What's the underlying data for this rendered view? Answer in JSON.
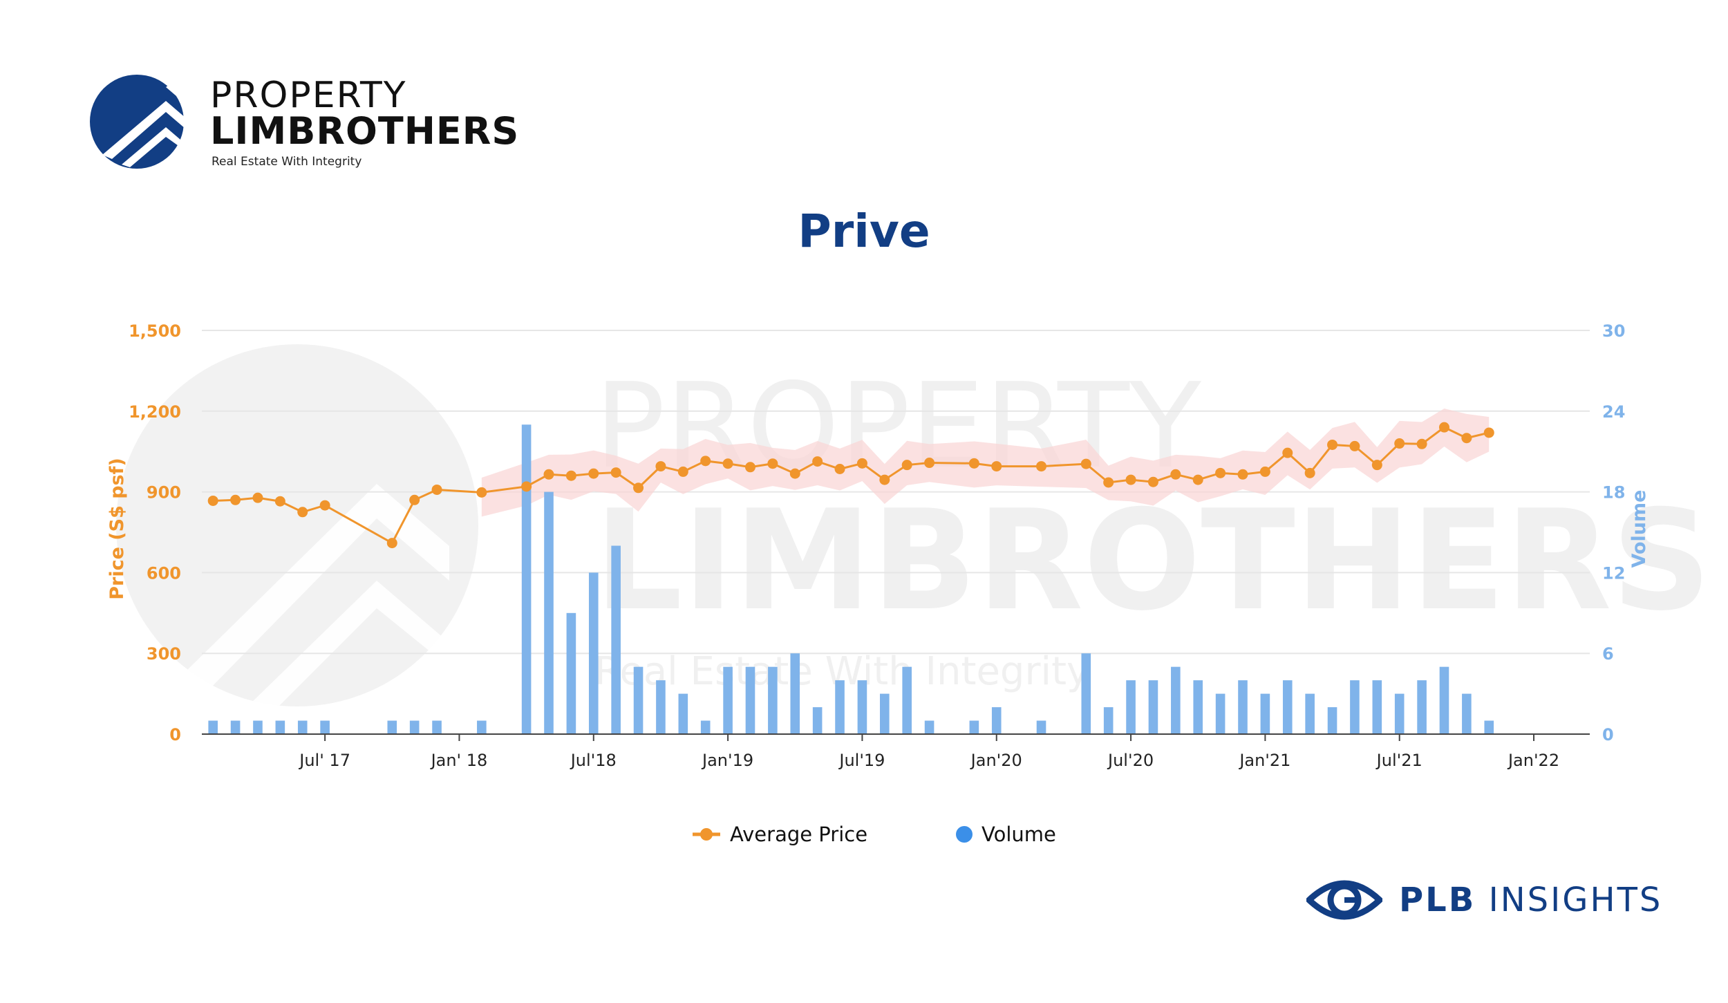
{
  "brand": {
    "line1": "PROPERTY",
    "line2": "LIMBROTHERS",
    "tagline": "Real Estate With Integrity",
    "watermark_line1": "PROPERTY",
    "watermark_line2": "LIMBROTHERS",
    "watermark_tagline": "Real Estate With Integrity",
    "color": "#123e84"
  },
  "footer": {
    "insights_bold": "PLB",
    "insights_rest": " INSIGHTS"
  },
  "legend": {
    "price": "Average Price",
    "volume": "Volume"
  },
  "colors": {
    "price": "#f0952c",
    "volume": "#7fb3ea",
    "band": "#f9d4d4",
    "legend_volume": "#3b8fe8"
  },
  "chart_data": {
    "type": "bar+line",
    "title": "Prive",
    "y_left_label": "Price (S$ psf)",
    "y_right_label": "Volume",
    "y_left_ticks": [
      "0",
      "300",
      "600",
      "900",
      "1,200",
      "1,500"
    ],
    "y_right_ticks": [
      "0",
      "6",
      "12",
      "18",
      "24",
      "30"
    ],
    "y_left_range": [
      0,
      1500
    ],
    "y_right_range": [
      0,
      30
    ],
    "x_tick_labels": [
      {
        "label": "Jul' 17",
        "month": "2017-07"
      },
      {
        "label": "Jan' 18",
        "month": "2018-01"
      },
      {
        "label": "Jul'18",
        "month": "2018-07"
      },
      {
        "label": "Jan'19",
        "month": "2019-01"
      },
      {
        "label": "Jul'19",
        "month": "2019-07"
      },
      {
        "label": "Jan'20",
        "month": "2020-01"
      },
      {
        "label": "Jul'20",
        "month": "2020-07"
      },
      {
        "label": "Jan'21",
        "month": "2021-01"
      },
      {
        "label": "Jul'21",
        "month": "2021-07"
      },
      {
        "label": "Jan'22",
        "month": "2022-01"
      }
    ],
    "x_range": [
      "2017-02",
      "2022-03"
    ],
    "grid": true,
    "series": [
      {
        "name": "Average Price",
        "type": "line",
        "axis": "left",
        "points": [
          [
            "2017-02",
            867
          ],
          [
            "2017-03",
            870
          ],
          [
            "2017-04",
            878
          ],
          [
            "2017-05",
            865
          ],
          [
            "2017-06",
            825
          ],
          [
            "2017-07",
            850
          ],
          [
            "2017-10",
            710
          ],
          [
            "2017-11",
            870
          ],
          [
            "2017-12",
            908
          ],
          [
            "2018-02",
            898
          ],
          [
            "2018-04",
            920
          ],
          [
            "2018-05",
            965
          ],
          [
            "2018-06",
            960
          ],
          [
            "2018-07",
            968
          ],
          [
            "2018-08",
            972
          ],
          [
            "2018-09",
            915
          ],
          [
            "2018-10",
            995
          ],
          [
            "2018-11",
            975
          ],
          [
            "2018-12",
            1015
          ],
          [
            "2019-01",
            1005
          ],
          [
            "2019-02",
            992
          ],
          [
            "2019-03",
            1005
          ],
          [
            "2019-04",
            968
          ],
          [
            "2019-05",
            1013
          ],
          [
            "2019-06",
            985
          ],
          [
            "2019-07",
            1006
          ],
          [
            "2019-08",
            945
          ],
          [
            "2019-09",
            1000
          ],
          [
            "2019-10",
            1008
          ],
          [
            "2019-12",
            1006
          ],
          [
            "2020-01",
            995
          ],
          [
            "2020-03",
            995
          ],
          [
            "2020-05",
            1004
          ],
          [
            "2020-06",
            935
          ],
          [
            "2020-07",
            945
          ],
          [
            "2020-08",
            937
          ],
          [
            "2020-09",
            965
          ],
          [
            "2020-10",
            945
          ],
          [
            "2020-11",
            970
          ],
          [
            "2020-12",
            965
          ],
          [
            "2021-01",
            975
          ],
          [
            "2021-02",
            1045
          ],
          [
            "2021-03",
            970
          ],
          [
            "2021-04",
            1075
          ],
          [
            "2021-05",
            1070
          ],
          [
            "2021-06",
            1000
          ],
          [
            "2021-07",
            1080
          ],
          [
            "2021-08",
            1078
          ],
          [
            "2021-09",
            1140
          ],
          [
            "2021-10",
            1100
          ],
          [
            "2021-11",
            1120
          ]
        ]
      },
      {
        "name": "Volume",
        "type": "bar",
        "axis": "right",
        "points": [
          [
            "2017-02",
            1
          ],
          [
            "2017-03",
            1
          ],
          [
            "2017-04",
            1
          ],
          [
            "2017-05",
            1
          ],
          [
            "2017-06",
            1
          ],
          [
            "2017-07",
            1
          ],
          [
            "2017-10",
            1
          ],
          [
            "2017-11",
            1
          ],
          [
            "2017-12",
            1
          ],
          [
            "2018-02",
            1
          ],
          [
            "2018-04",
            23
          ],
          [
            "2018-05",
            18
          ],
          [
            "2018-06",
            9
          ],
          [
            "2018-07",
            12
          ],
          [
            "2018-08",
            14
          ],
          [
            "2018-09",
            5
          ],
          [
            "2018-10",
            4
          ],
          [
            "2018-11",
            3
          ],
          [
            "2018-12",
            1
          ],
          [
            "2019-01",
            5
          ],
          [
            "2019-02",
            5
          ],
          [
            "2019-03",
            5
          ],
          [
            "2019-04",
            6
          ],
          [
            "2019-05",
            2
          ],
          [
            "2019-06",
            4
          ],
          [
            "2019-07",
            4
          ],
          [
            "2019-08",
            3
          ],
          [
            "2019-09",
            5
          ],
          [
            "2019-10",
            1
          ],
          [
            "2019-12",
            1
          ],
          [
            "2020-01",
            2
          ],
          [
            "2020-03",
            1
          ],
          [
            "2020-05",
            6
          ],
          [
            "2020-06",
            2
          ],
          [
            "2020-07",
            4
          ],
          [
            "2020-08",
            4
          ],
          [
            "2020-09",
            5
          ],
          [
            "2020-10",
            4
          ],
          [
            "2020-11",
            3
          ],
          [
            "2020-12",
            4
          ],
          [
            "2021-01",
            3
          ],
          [
            "2021-02",
            4
          ],
          [
            "2021-03",
            3
          ],
          [
            "2021-04",
            2
          ],
          [
            "2021-05",
            4
          ],
          [
            "2021-06",
            4
          ],
          [
            "2021-07",
            3
          ],
          [
            "2021-08",
            4
          ],
          [
            "2021-09",
            5
          ],
          [
            "2021-10",
            3
          ],
          [
            "2021-11",
            1
          ]
        ]
      }
    ],
    "legend_position": "bottom-center"
  }
}
